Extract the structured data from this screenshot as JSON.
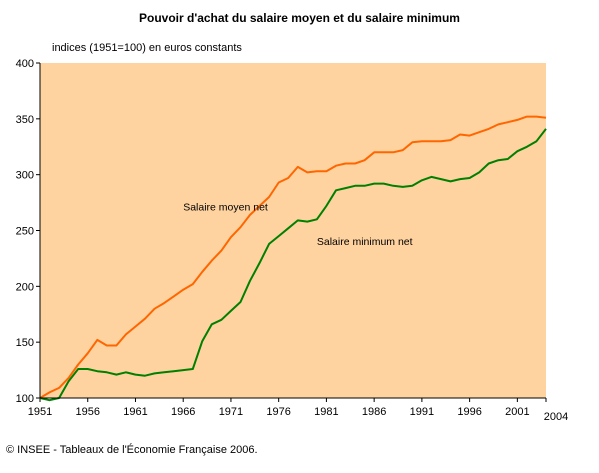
{
  "page": {
    "title": "Pouvoir d'achat du salaire moyen et du salaire minimum",
    "unit_label": "indices (1951=100) en euros constants",
    "footer": "© INSEE - Tableaux de l'Économie Française 2006."
  },
  "colors": {
    "plot_background": "#ffd3a0",
    "salaire_moyen": "#ff6600",
    "salaire_minimum": "#008000"
  },
  "chart_data": {
    "type": "line",
    "title": "Pouvoir d'achat du salaire moyen et du salaire minimum",
    "ylabel": "indices (1951=100) en euros constants",
    "xlabel": "",
    "xlim": [
      1951,
      2004
    ],
    "ylim": [
      100,
      400
    ],
    "x_ticks": [
      "1951",
      "1956",
      "1961",
      "1966",
      "1971",
      "1976",
      "1981",
      "1986",
      "1991",
      "1996",
      "2001",
      "2004"
    ],
    "y_ticks": [
      "100",
      "150",
      "200",
      "250",
      "300",
      "350",
      "400"
    ],
    "grid": false,
    "legend": "inline labels",
    "series": [
      {
        "name": "Salaire moyen net",
        "x": [
          1951,
          1952,
          1953,
          1954,
          1955,
          1956,
          1957,
          1958,
          1959,
          1960,
          1961,
          1962,
          1963,
          1964,
          1965,
          1966,
          1967,
          1968,
          1969,
          1970,
          1971,
          1972,
          1973,
          1974,
          1975,
          1976,
          1977,
          1978,
          1979,
          1980,
          1981,
          1982,
          1983,
          1984,
          1985,
          1986,
          1987,
          1988,
          1989,
          1990,
          1991,
          1992,
          1993,
          1994,
          1995,
          1996,
          1997,
          1998,
          1999,
          2000,
          2001,
          2002,
          2003,
          2004
        ],
        "values": [
          100,
          105,
          109,
          118,
          130,
          140,
          152,
          147,
          147,
          157,
          164,
          171,
          180,
          185,
          191,
          197,
          202,
          213,
          223,
          232,
          244,
          253,
          264,
          272,
          280,
          293,
          297,
          307,
          302,
          303,
          303,
          308,
          310,
          310,
          313,
          320,
          320,
          320,
          322,
          329,
          330,
          330,
          330,
          331,
          336,
          335,
          338,
          341,
          345,
          347,
          349,
          352,
          352,
          351
        ]
      },
      {
        "name": "Salaire minimum net",
        "x": [
          1951,
          1952,
          1953,
          1954,
          1955,
          1956,
          1957,
          1958,
          1959,
          1960,
          1961,
          1962,
          1963,
          1964,
          1965,
          1966,
          1967,
          1968,
          1969,
          1970,
          1971,
          1972,
          1973,
          1974,
          1975,
          1976,
          1977,
          1978,
          1979,
          1980,
          1981,
          1982,
          1983,
          1984,
          1985,
          1986,
          1987,
          1988,
          1989,
          1990,
          1991,
          1992,
          1993,
          1994,
          1995,
          1996,
          1997,
          1998,
          1999,
          2000,
          2001,
          2002,
          2003,
          2004
        ],
        "values": [
          100,
          98,
          100,
          115,
          126,
          126,
          124,
          123,
          121,
          123,
          121,
          120,
          122,
          123,
          124,
          125,
          126,
          151,
          166,
          170,
          178,
          186,
          205,
          221,
          238,
          245,
          252,
          259,
          258,
          260,
          272,
          286,
          288,
          290,
          290,
          292,
          292,
          290,
          289,
          290,
          295,
          298,
          296,
          294,
          296,
          297,
          302,
          310,
          313,
          314,
          321,
          325,
          330,
          341
        ]
      }
    ],
    "annotations": [
      {
        "text": "Salaire moyen net",
        "x": 1966,
        "y": 268
      },
      {
        "text": "Salaire minimum net",
        "x": 1980,
        "y": 237
      }
    ]
  }
}
